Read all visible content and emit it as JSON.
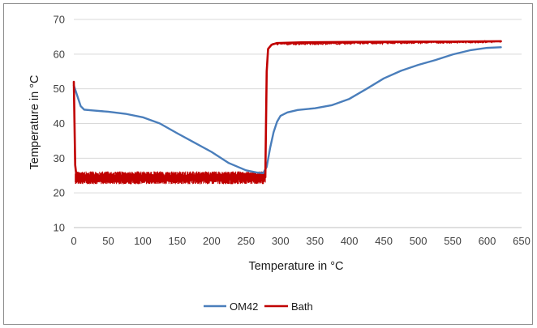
{
  "chart_data": {
    "type": "line",
    "title": "",
    "xlabel": "Temperature in °C",
    "ylabel": "Temperature in °C",
    "xlim": [
      0,
      650
    ],
    "ylim": [
      10,
      70
    ],
    "x_ticks": [
      0,
      50,
      100,
      150,
      200,
      250,
      300,
      350,
      400,
      450,
      500,
      550,
      600,
      650
    ],
    "y_ticks": [
      10,
      20,
      30,
      40,
      50,
      60,
      70
    ],
    "grid": "horizontal",
    "legend_position": "bottom",
    "series": [
      {
        "name": "OM42",
        "color": "#4a7ebb",
        "points": [
          [
            0,
            51
          ],
          [
            5,
            48
          ],
          [
            10,
            45
          ],
          [
            15,
            44
          ],
          [
            25,
            43.8
          ],
          [
            50,
            43.4
          ],
          [
            75,
            42.8
          ],
          [
            100,
            41.8
          ],
          [
            125,
            40
          ],
          [
            150,
            37.2
          ],
          [
            175,
            34.5
          ],
          [
            200,
            31.8
          ],
          [
            225,
            28.6
          ],
          [
            250,
            26.5
          ],
          [
            265,
            25.9
          ],
          [
            275,
            25.7
          ],
          [
            280,
            27.5
          ],
          [
            285,
            33
          ],
          [
            290,
            37.5
          ],
          [
            295,
            40.5
          ],
          [
            300,
            42.2
          ],
          [
            310,
            43.2
          ],
          [
            325,
            43.9
          ],
          [
            350,
            44.4
          ],
          [
            375,
            45.3
          ],
          [
            400,
            47.1
          ],
          [
            425,
            50
          ],
          [
            450,
            53
          ],
          [
            475,
            55.2
          ],
          [
            500,
            56.9
          ],
          [
            525,
            58.3
          ],
          [
            550,
            59.9
          ],
          [
            575,
            61.1
          ],
          [
            600,
            61.8
          ],
          [
            620,
            62
          ]
        ]
      },
      {
        "name": "Bath",
        "color": "#c00000",
        "points": [
          [
            0,
            52
          ],
          [
            1,
            40
          ],
          [
            2,
            28
          ],
          [
            4,
            24.5
          ],
          [
            278,
            24.5
          ],
          [
            279,
            40
          ],
          [
            280,
            55
          ],
          [
            282,
            61.5
          ],
          [
            287,
            62.7
          ],
          [
            295,
            63.2
          ],
          [
            330,
            63.4
          ],
          [
            400,
            63.5
          ],
          [
            500,
            63.6
          ],
          [
            550,
            63.6
          ],
          [
            620,
            63.7
          ]
        ],
        "band": {
          "x_range": [
            2,
            278
          ],
          "y_range": [
            22.5,
            26.2
          ]
        }
      }
    ]
  }
}
